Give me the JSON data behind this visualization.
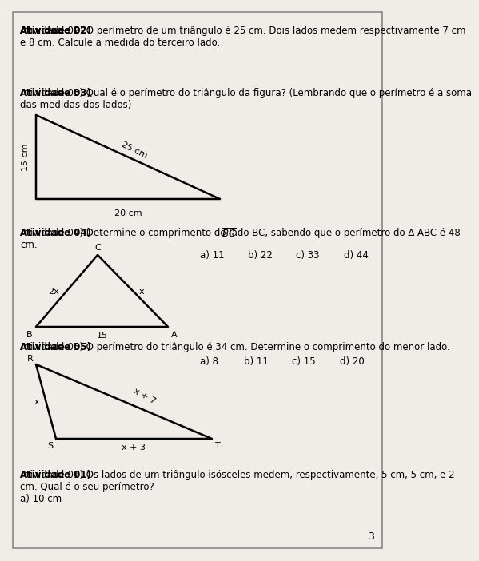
{
  "bg_color": "#f0ede8",
  "text_color": "#000000",
  "page_number": "3",
  "activity02": {
    "bold": "Atividade 02)",
    "text": " O perímetro de um triângulo é 25 cm. Dois lados medem respectivamente 7 cm\ne 8 cm. Calcule a medida do terceiro lado."
  },
  "activity03": {
    "bold": "Atividade 03)",
    "text": " Qual é o perímetro do triângulo da figura? (Lembrando que o perímetro é a soma\ndas medidas dos lados)",
    "label_left": "15 cm",
    "label_hyp": "25 cm",
    "label_bottom": "20 cm"
  },
  "activity04": {
    "bold": "Atividade 04)",
    "text": " Determine o comprimento do lado ",
    "overline_text": "BC",
    "text2": ", sabendo que o perímetro do ∆ ABC é 48\ncm.",
    "opt_a": "a) 11",
    "opt_b": "b) 22",
    "opt_c": "c) 33",
    "opt_d": "d) 44",
    "label_BC": "2x",
    "label_AC": "x",
    "label_BA": "15",
    "label_B": "B",
    "label_A": "A",
    "label_C": "C"
  },
  "activity05": {
    "bold": "Atividade 05)",
    "text": " O perímetro do triângulo é 34 cm. Determine o comprimento do menor lado.",
    "opt_a": "a) 8",
    "opt_b": "b) 11",
    "opt_c": "c) 15",
    "opt_d": "d) 20",
    "label_RS": "x",
    "label_RT": "x + 7",
    "label_ST": "x + 3",
    "label_R": "R",
    "label_S": "S",
    "label_T": "T"
  },
  "activity01": {
    "bold": "Atividade 01)",
    "text": " Os lados de um triângulo isósceles medem, respectivamente, 5 cm, 5 cm, e 2\ncm. Qual é o seu perímetro?",
    "answer": "a) 10 cm"
  }
}
